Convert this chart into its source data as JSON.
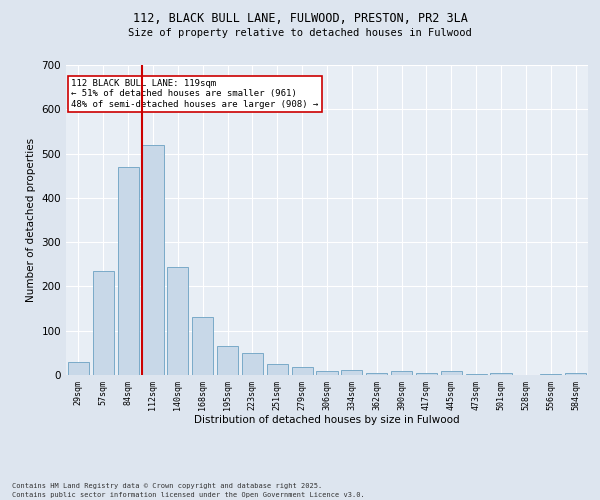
{
  "title1": "112, BLACK BULL LANE, FULWOOD, PRESTON, PR2 3LA",
  "title2": "Size of property relative to detached houses in Fulwood",
  "xlabel": "Distribution of detached houses by size in Fulwood",
  "ylabel": "Number of detached properties",
  "categories": [
    "29sqm",
    "57sqm",
    "84sqm",
    "112sqm",
    "140sqm",
    "168sqm",
    "195sqm",
    "223sqm",
    "251sqm",
    "279sqm",
    "306sqm",
    "334sqm",
    "362sqm",
    "390sqm",
    "417sqm",
    "445sqm",
    "473sqm",
    "501sqm",
    "528sqm",
    "556sqm",
    "584sqm"
  ],
  "values": [
    30,
    235,
    470,
    520,
    245,
    130,
    65,
    50,
    25,
    18,
    8,
    12,
    5,
    8,
    5,
    8,
    2,
    5,
    0,
    2,
    4
  ],
  "bar_color": "#c8d8e8",
  "bar_edge_color": "#7aaac8",
  "highlight_index": 3,
  "highlight_line_color": "#cc0000",
  "annotation_text": "112 BLACK BULL LANE: 119sqm\n← 51% of detached houses are smaller (961)\n48% of semi-detached houses are larger (908) →",
  "annotation_box_color": "#ffffff",
  "annotation_box_edge": "#cc0000",
  "ylim": [
    0,
    700
  ],
  "yticks": [
    0,
    100,
    200,
    300,
    400,
    500,
    600,
    700
  ],
  "footer1": "Contains HM Land Registry data © Crown copyright and database right 2025.",
  "footer2": "Contains public sector information licensed under the Open Government Licence v3.0.",
  "bg_color": "#dde5ef",
  "plot_bg_color": "#e8eef5"
}
